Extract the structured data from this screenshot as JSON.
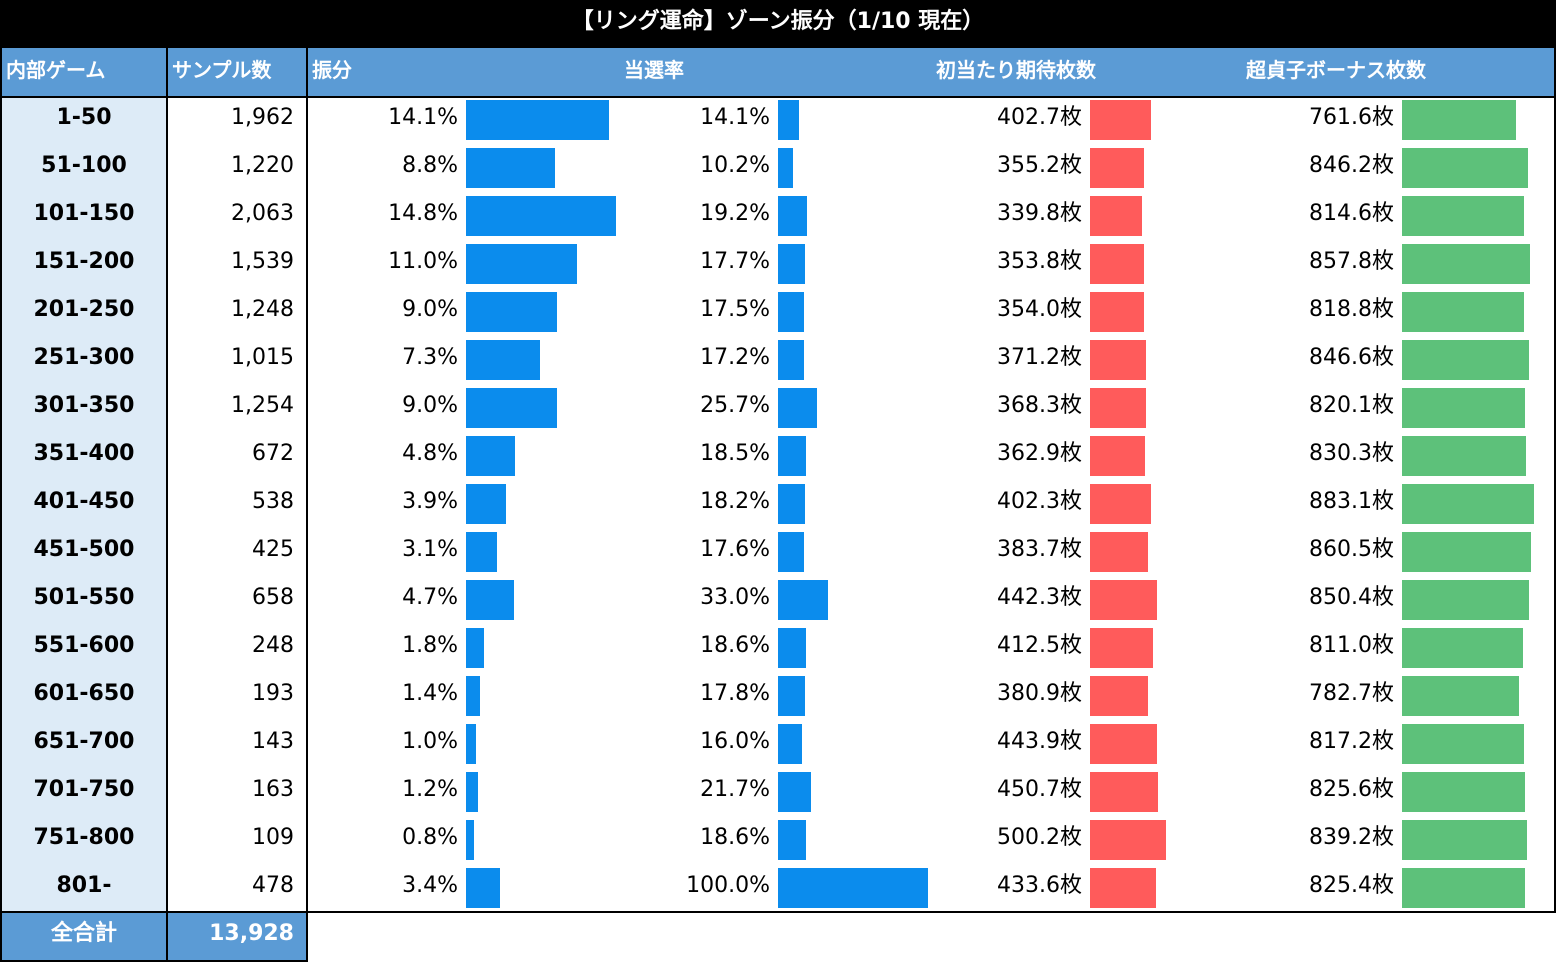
{
  "title": "【リング運命】ゾーン振分（1/10 現在）",
  "headers": {
    "zone": "内部ゲーム",
    "samples": "サンプル数",
    "distribution": "振分",
    "win_rate": "当選率",
    "first_hit_expected": "初当たり期待枚数",
    "super_bonus": "超貞子ボーナス枚数"
  },
  "colors": {
    "header": "#5b9bd5",
    "zone_column": "#ddebf7",
    "distribution_bar": "#0b8ced",
    "win_rate_bar": "#0b8ced",
    "first_hit_bar": "#ff5b5b",
    "super_bonus_bar": "#5dc17a"
  },
  "footer": {
    "label": "全合計",
    "total": "13,928"
  },
  "chart_data": {
    "type": "table",
    "title": "【リング運命】ゾーン振分（1/10 現在）",
    "columns": [
      "内部ゲーム",
      "サンプル数",
      "振分",
      "当選率",
      "初当たり期待枚数",
      "超貞子ボーナス枚数"
    ],
    "unit_coin": "枚",
    "rows": [
      {
        "zone": "1-50",
        "samples": "1,962",
        "dist": 14.1,
        "rate": 14.1,
        "first": 402.7,
        "bonus": 761.6
      },
      {
        "zone": "51-100",
        "samples": "1,220",
        "dist": 8.8,
        "rate": 10.2,
        "first": 355.2,
        "bonus": 846.2
      },
      {
        "zone": "101-150",
        "samples": "2,063",
        "dist": 14.8,
        "rate": 19.2,
        "first": 339.8,
        "bonus": 814.6
      },
      {
        "zone": "151-200",
        "samples": "1,539",
        "dist": 11.0,
        "rate": 17.7,
        "first": 353.8,
        "bonus": 857.8
      },
      {
        "zone": "201-250",
        "samples": "1,248",
        "dist": 9.0,
        "rate": 17.5,
        "first": 354.0,
        "bonus": 818.8
      },
      {
        "zone": "251-300",
        "samples": "1,015",
        "dist": 7.3,
        "rate": 17.2,
        "first": 371.2,
        "bonus": 846.6
      },
      {
        "zone": "301-350",
        "samples": "1,254",
        "dist": 9.0,
        "rate": 25.7,
        "first": 368.3,
        "bonus": 820.1
      },
      {
        "zone": "351-400",
        "samples": "672",
        "dist": 4.8,
        "rate": 18.5,
        "first": 362.9,
        "bonus": 830.3
      },
      {
        "zone": "401-450",
        "samples": "538",
        "dist": 3.9,
        "rate": 18.2,
        "first": 402.3,
        "bonus": 883.1
      },
      {
        "zone": "451-500",
        "samples": "425",
        "dist": 3.1,
        "rate": 17.6,
        "first": 383.7,
        "bonus": 860.5
      },
      {
        "zone": "501-550",
        "samples": "658",
        "dist": 4.7,
        "rate": 33.0,
        "first": 442.3,
        "bonus": 850.4
      },
      {
        "zone": "551-600",
        "samples": "248",
        "dist": 1.8,
        "rate": 18.6,
        "first": 412.5,
        "bonus": 811.0
      },
      {
        "zone": "601-650",
        "samples": "193",
        "dist": 1.4,
        "rate": 17.8,
        "first": 380.9,
        "bonus": 782.7
      },
      {
        "zone": "651-700",
        "samples": "143",
        "dist": 1.0,
        "rate": 16.0,
        "first": 443.9,
        "bonus": 817.2
      },
      {
        "zone": "701-750",
        "samples": "163",
        "dist": 1.2,
        "rate": 21.7,
        "first": 450.7,
        "bonus": 825.6
      },
      {
        "zone": "751-800",
        "samples": "109",
        "dist": 0.8,
        "rate": 18.6,
        "first": 500.2,
        "bonus": 839.2
      },
      {
        "zone": "801-",
        "samples": "478",
        "dist": 3.4,
        "rate": 100.0,
        "first": 433.6,
        "bonus": 825.4
      }
    ]
  }
}
